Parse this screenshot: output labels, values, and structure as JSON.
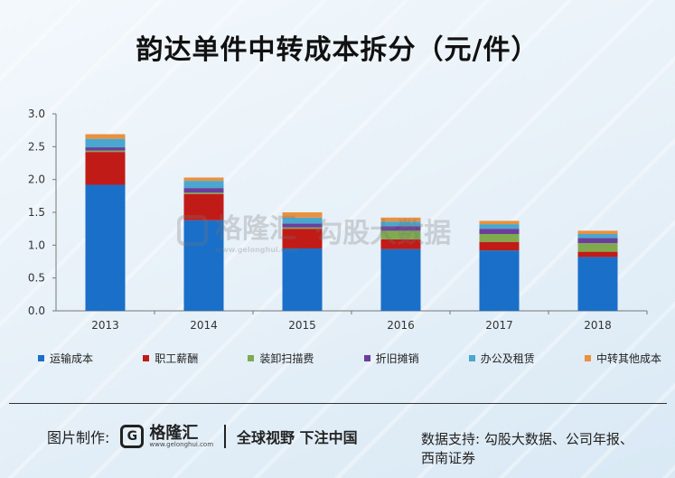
{
  "chart_data": {
    "type": "bar",
    "stacked": true,
    "title": "韵达单件中转成本拆分（元/件）",
    "categories": [
      "2013",
      "2014",
      "2015",
      "2016",
      "2017",
      "2018"
    ],
    "ylim": [
      0,
      3.0
    ],
    "yticks": [
      "0.0",
      "0.5",
      "1.0",
      "1.5",
      "2.0",
      "2.5",
      "3.0"
    ],
    "series": [
      {
        "name": "运输成本",
        "color": "#1a6fc9",
        "values": [
          1.92,
          1.38,
          0.95,
          0.94,
          0.92,
          0.82
        ]
      },
      {
        "name": "职工薪酬",
        "color": "#c11b17",
        "values": [
          0.5,
          0.4,
          0.3,
          0.15,
          0.13,
          0.08
        ]
      },
      {
        "name": "装卸扫描费",
        "color": "#7fab4e",
        "values": [
          0.02,
          0.02,
          0.02,
          0.13,
          0.12,
          0.13
        ]
      },
      {
        "name": "折旧摊销",
        "color": "#6a3f9c",
        "values": [
          0.05,
          0.07,
          0.06,
          0.07,
          0.08,
          0.08
        ]
      },
      {
        "name": "办公及租赁",
        "color": "#4aa7cf",
        "values": [
          0.13,
          0.11,
          0.09,
          0.07,
          0.07,
          0.06
        ]
      },
      {
        "name": "中转其他成本",
        "color": "#e9913e",
        "values": [
          0.07,
          0.05,
          0.08,
          0.06,
          0.05,
          0.05
        ]
      }
    ]
  },
  "watermark": {
    "brand": "格隆汇",
    "site": "www.gelonghui.com",
    "text": "勾股大数据"
  },
  "footer": {
    "made_by_label": "图片制作:",
    "logo_cn": "格隆汇",
    "logo_en": "www.gelonghui.com",
    "slogan": "全球视野 下注中国",
    "source_line1": "数据支持: 勾股大数据、公司年报、",
    "source_line2": "西南证券"
  }
}
